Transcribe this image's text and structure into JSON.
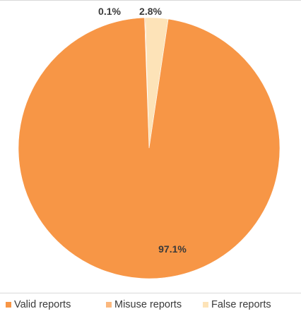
{
  "chart_data": {
    "type": "pie",
    "categories": [
      "Valid reports",
      "Misuse reports",
      "False reports"
    ],
    "values": [
      97.1,
      0.1,
      2.8
    ],
    "data_labels": [
      "97.1%",
      "0.1%",
      "2.8%"
    ],
    "colors": [
      "#f79646",
      "#fbb87e",
      "#fde3b8"
    ],
    "title": "",
    "legend": {
      "placement": "bottom",
      "entries": [
        "Valid reports",
        "Misuse reports",
        "False reports"
      ]
    }
  }
}
